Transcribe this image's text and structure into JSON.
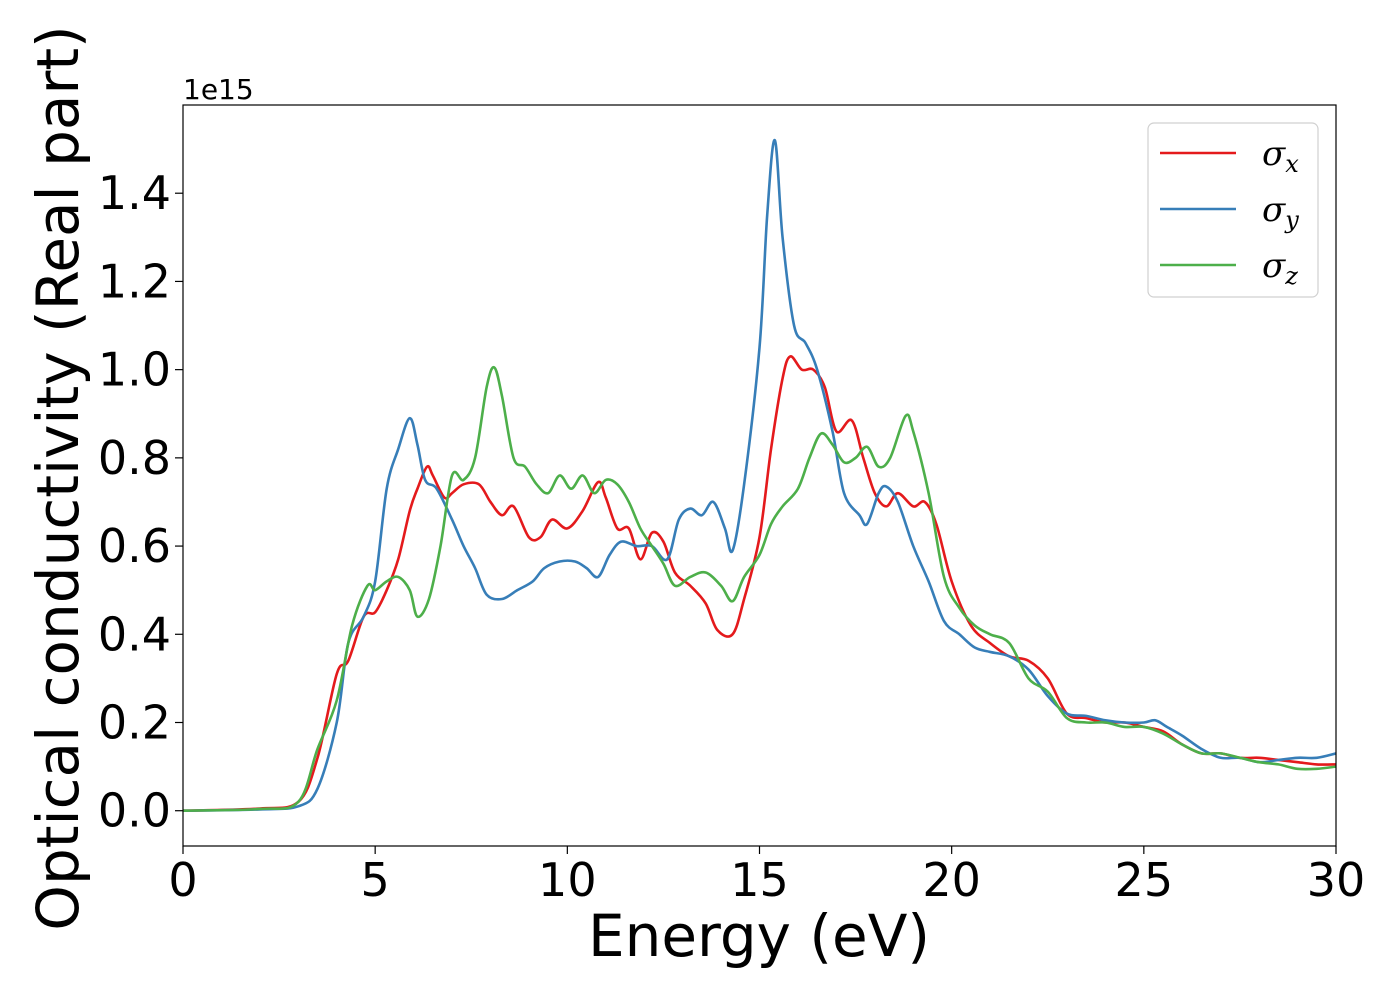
{
  "chart_data": {
    "type": "line",
    "xlabel": "Energy (eV)",
    "ylabel": "Optical conductivity (Real part)",
    "y_offset_text": "1e15",
    "xlim": [
      0,
      30
    ],
    "ylim": [
      -0.08,
      1.6
    ],
    "x_ticks": [
      0,
      5,
      10,
      15,
      20,
      25,
      30
    ],
    "x_tick_labels": [
      "0",
      "5",
      "10",
      "15",
      "20",
      "25",
      "30"
    ],
    "y_ticks": [
      0.0,
      0.2,
      0.4,
      0.6,
      0.8,
      1.0,
      1.2,
      1.4
    ],
    "y_tick_labels": [
      "0.0",
      "0.2",
      "0.4",
      "0.6",
      "0.8",
      "1.0",
      "1.2",
      "1.4"
    ],
    "grid": false,
    "legend_position": "top-right",
    "series": [
      {
        "name": "σx",
        "legend_base": "σ",
        "legend_sub": "x",
        "color": "#e41a1c",
        "points": [
          [
            0,
            0
          ],
          [
            2,
            0.005
          ],
          [
            3,
            0.02
          ],
          [
            3.5,
            0.12
          ],
          [
            4,
            0.31
          ],
          [
            4.3,
            0.34
          ],
          [
            4.7,
            0.44
          ],
          [
            5,
            0.45
          ],
          [
            5.3,
            0.5
          ],
          [
            5.6,
            0.57
          ],
          [
            5.9,
            0.68
          ],
          [
            6.1,
            0.73
          ],
          [
            6.35,
            0.78
          ],
          [
            6.5,
            0.76
          ],
          [
            6.8,
            0.71
          ],
          [
            7,
            0.72
          ],
          [
            7.3,
            0.74
          ],
          [
            7.7,
            0.74
          ],
          [
            8,
            0.7
          ],
          [
            8.3,
            0.67
          ],
          [
            8.6,
            0.69
          ],
          [
            9,
            0.62
          ],
          [
            9.3,
            0.62
          ],
          [
            9.6,
            0.66
          ],
          [
            10,
            0.64
          ],
          [
            10.4,
            0.68
          ],
          [
            10.8,
            0.745
          ],
          [
            11,
            0.71
          ],
          [
            11.3,
            0.64
          ],
          [
            11.6,
            0.64
          ],
          [
            11.9,
            0.57
          ],
          [
            12.2,
            0.63
          ],
          [
            12.5,
            0.61
          ],
          [
            12.8,
            0.54
          ],
          [
            13.2,
            0.51
          ],
          [
            13.6,
            0.47
          ],
          [
            13.9,
            0.41
          ],
          [
            14.3,
            0.4
          ],
          [
            14.6,
            0.48
          ],
          [
            15,
            0.62
          ],
          [
            15.3,
            0.82
          ],
          [
            15.6,
            0.98
          ],
          [
            15.8,
            1.03
          ],
          [
            16.1,
            1.0
          ],
          [
            16.4,
            1.0
          ],
          [
            16.7,
            0.96
          ],
          [
            17,
            0.86
          ],
          [
            17.4,
            0.885
          ],
          [
            17.7,
            0.8
          ],
          [
            18,
            0.72
          ],
          [
            18.3,
            0.69
          ],
          [
            18.6,
            0.72
          ],
          [
            19,
            0.69
          ],
          [
            19.3,
            0.7
          ],
          [
            19.6,
            0.65
          ],
          [
            20,
            0.52
          ],
          [
            20.5,
            0.42
          ],
          [
            21,
            0.38
          ],
          [
            21.5,
            0.35
          ],
          [
            22,
            0.34
          ],
          [
            22.5,
            0.3
          ],
          [
            23,
            0.22
          ],
          [
            23.5,
            0.21
          ],
          [
            24,
            0.2
          ],
          [
            24.5,
            0.2
          ],
          [
            25,
            0.19
          ],
          [
            25.5,
            0.18
          ],
          [
            26,
            0.15
          ],
          [
            26.5,
            0.13
          ],
          [
            27,
            0.13
          ],
          [
            27.5,
            0.12
          ],
          [
            28,
            0.12
          ],
          [
            28.5,
            0.115
          ],
          [
            29,
            0.11
          ],
          [
            29.5,
            0.105
          ],
          [
            30,
            0.105
          ]
        ]
      },
      {
        "name": "σy",
        "legend_base": "σ",
        "legend_sub": "y",
        "color": "#377eb8",
        "points": [
          [
            0,
            0
          ],
          [
            2,
            0.003
          ],
          [
            3,
            0.01
          ],
          [
            3.5,
            0.05
          ],
          [
            4,
            0.2
          ],
          [
            4.3,
            0.38
          ],
          [
            4.7,
            0.44
          ],
          [
            5,
            0.52
          ],
          [
            5.3,
            0.73
          ],
          [
            5.6,
            0.82
          ],
          [
            5.9,
            0.89
          ],
          [
            6.1,
            0.83
          ],
          [
            6.3,
            0.75
          ],
          [
            6.6,
            0.73
          ],
          [
            7,
            0.66
          ],
          [
            7.3,
            0.6
          ],
          [
            7.6,
            0.55
          ],
          [
            7.9,
            0.49
          ],
          [
            8.3,
            0.48
          ],
          [
            8.7,
            0.5
          ],
          [
            9.1,
            0.52
          ],
          [
            9.4,
            0.55
          ],
          [
            9.8,
            0.565
          ],
          [
            10.2,
            0.565
          ],
          [
            10.5,
            0.55
          ],
          [
            10.8,
            0.53
          ],
          [
            11.1,
            0.58
          ],
          [
            11.4,
            0.61
          ],
          [
            11.8,
            0.6
          ],
          [
            12.2,
            0.6
          ],
          [
            12.6,
            0.57
          ],
          [
            12.9,
            0.66
          ],
          [
            13.2,
            0.685
          ],
          [
            13.5,
            0.67
          ],
          [
            13.8,
            0.7
          ],
          [
            14.1,
            0.64
          ],
          [
            14.3,
            0.59
          ],
          [
            14.6,
            0.74
          ],
          [
            15,
            1.05
          ],
          [
            15.2,
            1.35
          ],
          [
            15.4,
            1.52
          ],
          [
            15.6,
            1.3
          ],
          [
            15.9,
            1.1
          ],
          [
            16.2,
            1.06
          ],
          [
            16.5,
            1.0
          ],
          [
            16.9,
            0.86
          ],
          [
            17.2,
            0.72
          ],
          [
            17.6,
            0.67
          ],
          [
            17.8,
            0.65
          ],
          [
            18.1,
            0.72
          ],
          [
            18.3,
            0.735
          ],
          [
            18.6,
            0.7
          ],
          [
            19,
            0.6
          ],
          [
            19.4,
            0.52
          ],
          [
            19.8,
            0.43
          ],
          [
            20.2,
            0.4
          ],
          [
            20.6,
            0.37
          ],
          [
            21,
            0.36
          ],
          [
            21.5,
            0.35
          ],
          [
            22,
            0.32
          ],
          [
            22.5,
            0.26
          ],
          [
            23,
            0.22
          ],
          [
            23.5,
            0.215
          ],
          [
            24,
            0.205
          ],
          [
            24.5,
            0.2
          ],
          [
            25,
            0.2
          ],
          [
            25.3,
            0.205
          ],
          [
            25.6,
            0.19
          ],
          [
            26,
            0.17
          ],
          [
            26.5,
            0.14
          ],
          [
            27,
            0.12
          ],
          [
            27.5,
            0.12
          ],
          [
            28,
            0.11
          ],
          [
            28.5,
            0.115
          ],
          [
            29,
            0.12
          ],
          [
            29.5,
            0.12
          ],
          [
            30,
            0.13
          ]
        ]
      },
      {
        "name": "σz",
        "legend_base": "σ",
        "legend_sub": "z",
        "color": "#4daf4a",
        "points": [
          [
            0,
            0
          ],
          [
            2,
            0.004
          ],
          [
            3,
            0.02
          ],
          [
            3.5,
            0.14
          ],
          [
            4,
            0.25
          ],
          [
            4.4,
            0.42
          ],
          [
            4.8,
            0.51
          ],
          [
            5,
            0.5
          ],
          [
            5.3,
            0.52
          ],
          [
            5.6,
            0.53
          ],
          [
            5.9,
            0.5
          ],
          [
            6.1,
            0.44
          ],
          [
            6.4,
            0.48
          ],
          [
            6.7,
            0.6
          ],
          [
            7,
            0.76
          ],
          [
            7.3,
            0.75
          ],
          [
            7.6,
            0.8
          ],
          [
            7.9,
            0.96
          ],
          [
            8.1,
            1.005
          ],
          [
            8.3,
            0.94
          ],
          [
            8.6,
            0.8
          ],
          [
            8.9,
            0.78
          ],
          [
            9.2,
            0.74
          ],
          [
            9.5,
            0.72
          ],
          [
            9.8,
            0.76
          ],
          [
            10.1,
            0.73
          ],
          [
            10.4,
            0.76
          ],
          [
            10.7,
            0.72
          ],
          [
            11,
            0.75
          ],
          [
            11.3,
            0.74
          ],
          [
            11.6,
            0.7
          ],
          [
            11.9,
            0.64
          ],
          [
            12.2,
            0.6
          ],
          [
            12.5,
            0.56
          ],
          [
            12.8,
            0.51
          ],
          [
            13.2,
            0.53
          ],
          [
            13.6,
            0.54
          ],
          [
            14,
            0.51
          ],
          [
            14.3,
            0.475
          ],
          [
            14.6,
            0.53
          ],
          [
            15,
            0.58
          ],
          [
            15.3,
            0.65
          ],
          [
            15.6,
            0.69
          ],
          [
            16,
            0.73
          ],
          [
            16.3,
            0.8
          ],
          [
            16.6,
            0.855
          ],
          [
            16.9,
            0.83
          ],
          [
            17.2,
            0.79
          ],
          [
            17.5,
            0.8
          ],
          [
            17.8,
            0.825
          ],
          [
            18.1,
            0.78
          ],
          [
            18.4,
            0.8
          ],
          [
            18.8,
            0.895
          ],
          [
            19,
            0.86
          ],
          [
            19.4,
            0.72
          ],
          [
            19.8,
            0.53
          ],
          [
            20.2,
            0.46
          ],
          [
            20.6,
            0.42
          ],
          [
            21,
            0.4
          ],
          [
            21.5,
            0.38
          ],
          [
            22,
            0.3
          ],
          [
            22.5,
            0.27
          ],
          [
            23,
            0.21
          ],
          [
            23.5,
            0.2
          ],
          [
            24,
            0.2
          ],
          [
            24.5,
            0.19
          ],
          [
            25,
            0.19
          ],
          [
            25.5,
            0.175
          ],
          [
            26,
            0.15
          ],
          [
            26.5,
            0.13
          ],
          [
            27,
            0.13
          ],
          [
            27.5,
            0.12
          ],
          [
            28,
            0.11
          ],
          [
            28.5,
            0.105
          ],
          [
            29,
            0.095
          ],
          [
            29.5,
            0.095
          ],
          [
            30,
            0.1
          ]
        ]
      }
    ]
  }
}
